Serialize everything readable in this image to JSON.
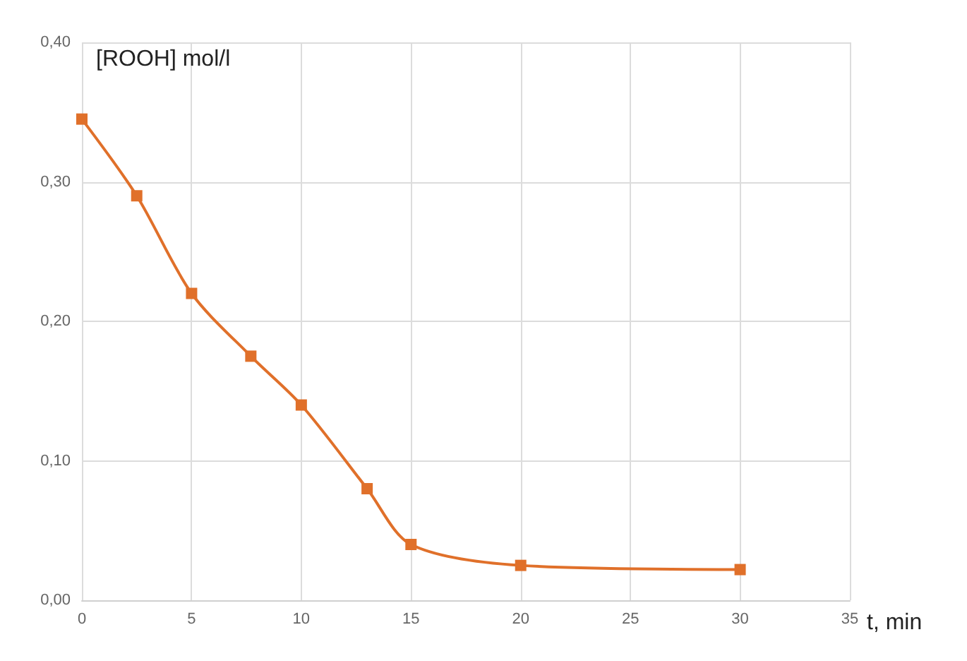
{
  "chart_data": {
    "type": "line",
    "xlabel": "t, min",
    "ylabel": "[ROOH] mol/l",
    "x": [
      0,
      2.5,
      5,
      7.7,
      10,
      13,
      15,
      20,
      30
    ],
    "series": [
      {
        "color": "#e0702a",
        "values": [
          0.345,
          0.29,
          0.22,
          0.175,
          0.14,
          0.08,
          0.04,
          0.025,
          0.022
        ]
      }
    ],
    "xlim": [
      0,
      35
    ],
    "xticks": [
      0,
      5,
      10,
      15,
      20,
      25,
      30,
      35
    ],
    "ylim": [
      0,
      0.4
    ],
    "yticks": [
      {
        "value": 0,
        "label": "0,00"
      },
      {
        "value": 0.1,
        "label": "0,10"
      },
      {
        "value": 0.2,
        "label": "0,20"
      },
      {
        "value": 0.3,
        "label": "0,30"
      },
      {
        "value": 0.4,
        "label": "0,40"
      }
    ],
    "grid": true,
    "marker": "square",
    "line_style": "solid"
  }
}
